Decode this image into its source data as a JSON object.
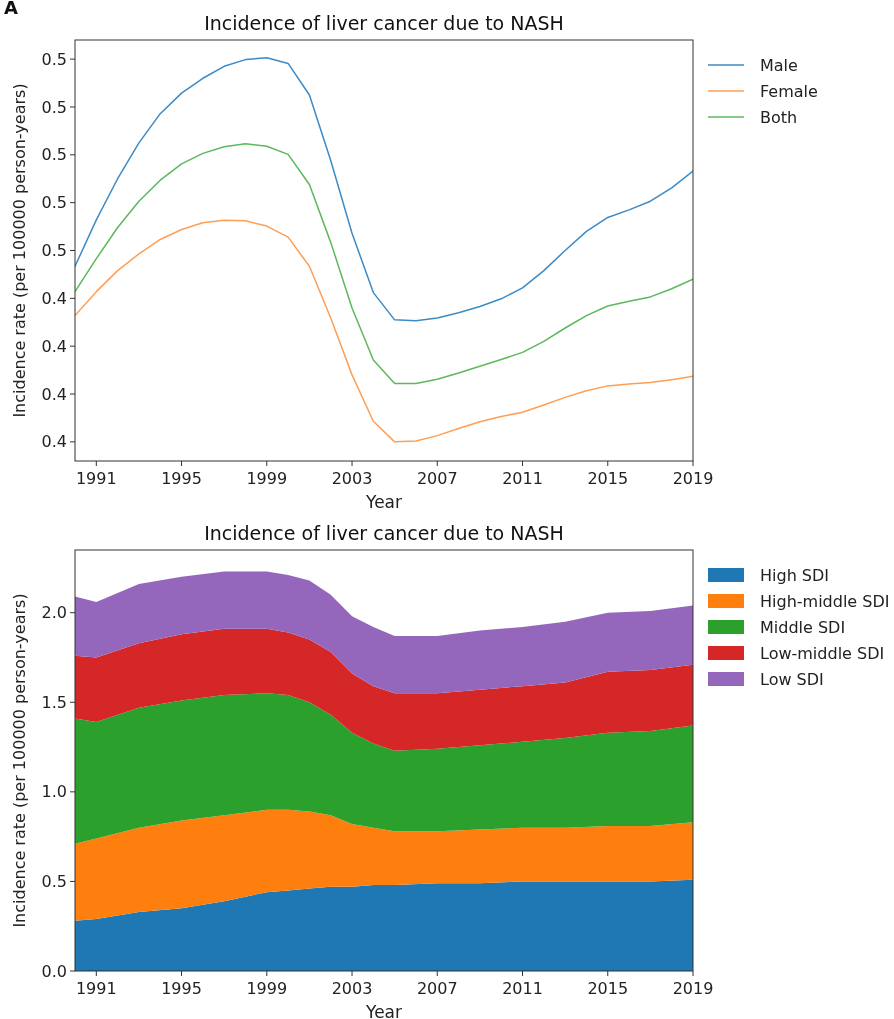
{
  "chart_data": [
    {
      "type": "line",
      "title": "Incidence of liver cancer due to NASH",
      "xlabel": "Year",
      "ylabel": "Incidence rate (per 100000 person-years)",
      "annotations": [
        "A"
      ],
      "legend": "right",
      "x": [
        1990,
        1991,
        1992,
        1993,
        1994,
        1995,
        1996,
        1997,
        1998,
        1999,
        2000,
        2001,
        2002,
        2003,
        2004,
        2005,
        2006,
        2007,
        2008,
        2009,
        2010,
        2011,
        2012,
        2013,
        2014,
        2015,
        2016,
        2017,
        2018,
        2019
      ],
      "xlim": [
        1990,
        2019
      ],
      "xticks": [
        1991,
        1995,
        1999,
        2003,
        2007,
        2011,
        2015,
        2019
      ],
      "ylim": [
        0.406,
        0.494
      ],
      "yticks": [
        {
          "value": 0.41,
          "label": "0.4"
        },
        {
          "value": 0.42,
          "label": "0.4"
        },
        {
          "value": 0.43,
          "label": "0.4"
        },
        {
          "value": 0.44,
          "label": "0.4"
        },
        {
          "value": 0.45,
          "label": "0.5"
        },
        {
          "value": 0.46,
          "label": "0.5"
        },
        {
          "value": 0.47,
          "label": "0.5"
        },
        {
          "value": 0.48,
          "label": "0.5"
        },
        {
          "value": 0.49,
          "label": "0.5"
        }
      ],
      "series": [
        {
          "name": "Male",
          "color": "#3d8ac4",
          "values": [
            0.4467,
            0.4564,
            0.465,
            0.4725,
            0.4786,
            0.4829,
            0.486,
            0.4885,
            0.4899,
            0.4903,
            0.4891,
            0.4825,
            0.4688,
            0.4536,
            0.4412,
            0.4355,
            0.4353,
            0.4359,
            0.437,
            0.4383,
            0.4399,
            0.4422,
            0.4458,
            0.45,
            0.454,
            0.4569,
            0.4585,
            0.4603,
            0.4631,
            0.4666
          ]
        },
        {
          "name": "Female",
          "color": "#ff9e55",
          "values": [
            0.4364,
            0.4414,
            0.4458,
            0.4493,
            0.4523,
            0.4544,
            0.4558,
            0.4563,
            0.4562,
            0.4551,
            0.4528,
            0.4467,
            0.4359,
            0.424,
            0.4143,
            0.41,
            0.4102,
            0.4113,
            0.4128,
            0.4142,
            0.4153,
            0.4162,
            0.4177,
            0.4193,
            0.4207,
            0.4217,
            0.4221,
            0.4224,
            0.423,
            0.4237
          ]
        },
        {
          "name": "Both",
          "color": "#5cb85c",
          "values": [
            0.4414,
            0.4483,
            0.4548,
            0.4603,
            0.4647,
            0.4681,
            0.4703,
            0.4717,
            0.4723,
            0.4718,
            0.4701,
            0.4638,
            0.4517,
            0.438,
            0.4271,
            0.4222,
            0.4222,
            0.4231,
            0.4244,
            0.4258,
            0.4272,
            0.4287,
            0.431,
            0.4338,
            0.4364,
            0.4384,
            0.4394,
            0.4403,
            0.442,
            0.444
          ]
        }
      ]
    },
    {
      "type": "area",
      "stacked": true,
      "title": "Incidence of liver cancer due to NASH",
      "xlabel": "Year",
      "ylabel": "Incidence rate (per 100000 person-years)",
      "legend": "right",
      "x": [
        1990,
        1991,
        1993,
        1995,
        1997,
        1999,
        2000,
        2001,
        2002,
        2003,
        2004,
        2005,
        2007,
        2009,
        2011,
        2013,
        2015,
        2017,
        2019
      ],
      "xlim": [
        1990,
        2019
      ],
      "xticks": [
        1991,
        1995,
        1999,
        2003,
        2007,
        2011,
        2015,
        2019
      ],
      "ylim": [
        0,
        2.35
      ],
      "yticks": [
        {
          "value": 0,
          "label": "0.0"
        },
        {
          "value": 0.5,
          "label": "0.5"
        },
        {
          "value": 1,
          "label": "1.0"
        },
        {
          "value": 1.5,
          "label": "1.5"
        },
        {
          "value": 2,
          "label": "2.0"
        }
      ],
      "series": [
        {
          "name": "High SDI",
          "color": "#1f77b4",
          "values": [
            0.28,
            0.29,
            0.33,
            0.35,
            0.39,
            0.44,
            0.45,
            0.46,
            0.47,
            0.47,
            0.48,
            0.48,
            0.49,
            0.49,
            0.5,
            0.5,
            0.5,
            0.5,
            0.51
          ]
        },
        {
          "name": "High-middle SDI",
          "color": "#ff7f0e",
          "values": [
            0.43,
            0.45,
            0.47,
            0.49,
            0.48,
            0.46,
            0.45,
            0.43,
            0.4,
            0.35,
            0.32,
            0.3,
            0.29,
            0.3,
            0.3,
            0.3,
            0.31,
            0.31,
            0.32
          ]
        },
        {
          "name": "Middle SDI",
          "color": "#2ca02c",
          "values": [
            0.7,
            0.65,
            0.67,
            0.67,
            0.67,
            0.65,
            0.64,
            0.61,
            0.56,
            0.51,
            0.47,
            0.45,
            0.46,
            0.47,
            0.48,
            0.5,
            0.52,
            0.53,
            0.54
          ]
        },
        {
          "name": "Low-middle SDI",
          "color": "#d62728",
          "values": [
            0.35,
            0.36,
            0.36,
            0.37,
            0.37,
            0.36,
            0.35,
            0.35,
            0.35,
            0.33,
            0.32,
            0.32,
            0.31,
            0.31,
            0.31,
            0.31,
            0.34,
            0.34,
            0.34
          ]
        },
        {
          "name": "Low SDI",
          "color": "#9467bd",
          "values": [
            0.33,
            0.31,
            0.33,
            0.32,
            0.32,
            0.32,
            0.32,
            0.33,
            0.32,
            0.32,
            0.33,
            0.32,
            0.32,
            0.33,
            0.33,
            0.34,
            0.33,
            0.33,
            0.33
          ]
        }
      ]
    }
  ]
}
